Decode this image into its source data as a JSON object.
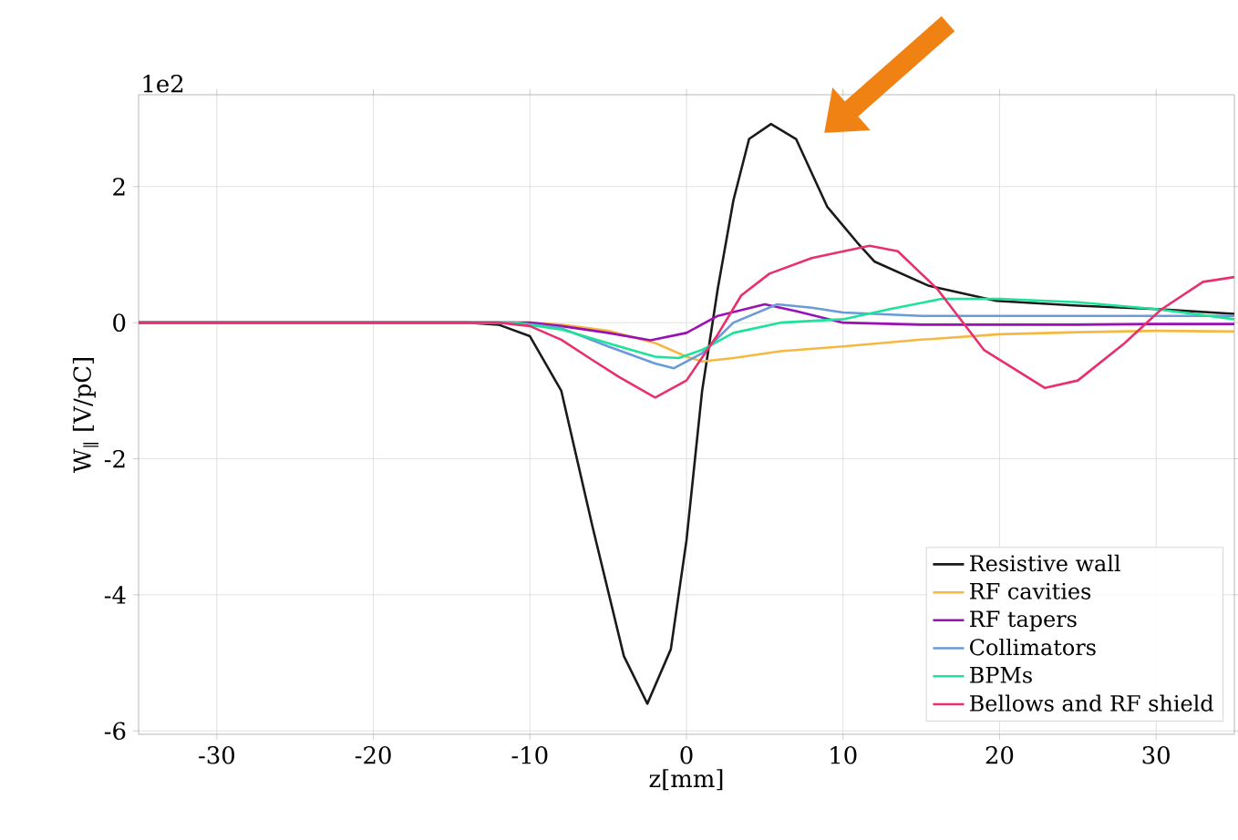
{
  "chart_data": {
    "type": "line",
    "xlabel": "z[mm]",
    "ylabel": "W$_{∥}$ [V/pC]",
    "annotations": [
      "1e2"
    ],
    "xlim": [
      -35,
      35
    ],
    "ylim": [
      -6.05,
      3.35
    ],
    "xticks": [
      -30,
      -20,
      -10,
      0,
      10,
      20,
      30
    ],
    "yticks": [
      -6,
      -4,
      -2,
      0,
      2
    ],
    "grid": true,
    "legend": "bottom right",
    "series": [
      {
        "name": "Resistive wall",
        "color": "#1a1a1a",
        "x": [
          -35,
          -14,
          -12,
          -10,
          -8,
          -6,
          -4,
          -2.5,
          -1,
          0,
          1,
          2,
          3,
          4,
          5.4,
          7,
          8,
          9,
          10.9,
          12,
          15.5,
          19.8,
          25,
          30,
          35
        ],
        "values": [
          0,
          0,
          -0.03,
          -0.2,
          -1,
          -3,
          -4.9,
          -5.6,
          -4.8,
          -3.2,
          -1,
          0.5,
          1.8,
          2.7,
          2.92,
          2.7,
          2.2,
          1.7,
          1.18,
          0.9,
          0.54,
          0.32,
          0.25,
          0.2,
          0.13
        ]
      },
      {
        "name": "RF cavities",
        "color": "#f5b942",
        "x": [
          -35,
          -10,
          -8,
          -5,
          -2,
          0,
          1,
          3,
          6,
          10,
          15,
          20,
          25,
          30,
          35
        ],
        "values": [
          0,
          0,
          -0.03,
          -0.12,
          -0.3,
          -0.5,
          -0.57,
          -0.52,
          -0.42,
          -0.35,
          -0.25,
          -0.17,
          -0.14,
          -0.12,
          -0.13
        ]
      },
      {
        "name": "RF tapers",
        "color": "#9b10b4",
        "x": [
          -35,
          -10,
          -8,
          -5,
          -2.3,
          0,
          2,
          5,
          7,
          10,
          15,
          20,
          25,
          30,
          35
        ],
        "values": [
          0,
          0,
          -0.05,
          -0.15,
          -0.26,
          -0.15,
          0.1,
          0.27,
          0.17,
          0,
          -0.03,
          -0.03,
          -0.03,
          -0.02,
          -0.02
        ]
      },
      {
        "name": "Collimators",
        "color": "#6a9bd8",
        "x": [
          -35,
          -11,
          -8,
          -5,
          -2,
          -0.8,
          1,
          3,
          5.8,
          8,
          10,
          15,
          20,
          25,
          30,
          35
        ],
        "values": [
          0,
          0,
          -0.08,
          -0.35,
          -0.6,
          -0.67,
          -0.45,
          0,
          0.27,
          0.22,
          0.15,
          0.1,
          0.1,
          0.1,
          0.1,
          0.1
        ]
      },
      {
        "name": "BPMs",
        "color": "#1de39a",
        "x": [
          -35,
          -11,
          -8,
          -4.3,
          -2,
          -0.5,
          1,
          3,
          6,
          10,
          13,
          16.3,
          20,
          25,
          30,
          35
        ],
        "values": [
          0,
          0,
          -0.1,
          -0.35,
          -0.5,
          -0.52,
          -0.4,
          -0.15,
          0,
          0.05,
          0.2,
          0.35,
          0.35,
          0.3,
          0.2,
          0.05
        ]
      },
      {
        "name": "Bellows and RF shield",
        "color": "#e8306a",
        "x": [
          -35,
          -12,
          -10,
          -8,
          -6,
          -4.3,
          -2,
          0,
          1.9,
          3.5,
          5.3,
          8,
          11.7,
          13.5,
          16,
          19,
          22.9,
          25,
          28,
          30.3,
          33,
          35
        ],
        "values": [
          0,
          0,
          -0.05,
          -0.25,
          -0.55,
          -0.8,
          -1.1,
          -0.85,
          -0.21,
          0.4,
          0.72,
          0.95,
          1.13,
          1.05,
          0.5,
          -0.4,
          -0.96,
          -0.85,
          -0.3,
          0.19,
          0.6,
          0.67
        ]
      }
    ]
  }
}
